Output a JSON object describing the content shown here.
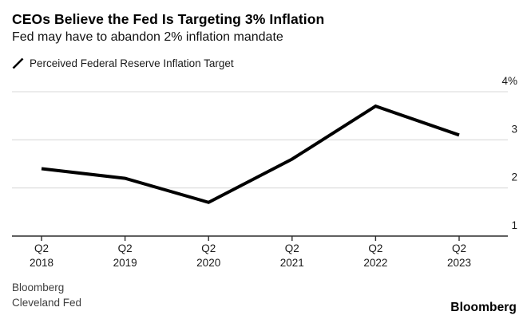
{
  "header": {
    "title": "CEOs Believe the Fed Is Targeting 3% Inflation",
    "subtitle": "Fed may have to abandon 2% inflation mandate"
  },
  "legend": {
    "label": "Perceived Federal Reserve Inflation Target",
    "marker": "slash-line",
    "color": "#000000"
  },
  "chart_data": {
    "type": "line",
    "title": "CEOs Believe the Fed Is Targeting 3% Inflation",
    "subtitle": "Fed may have to abandon 2% inflation mandate",
    "series": [
      {
        "name": "Perceived Federal Reserve Inflation Target",
        "values": [
          2.4,
          2.2,
          1.7,
          2.6,
          3.7,
          3.1
        ],
        "color": "#000000"
      }
    ],
    "categories": [
      {
        "quarter": "Q2",
        "year": "2018"
      },
      {
        "quarter": "Q2",
        "year": "2019"
      },
      {
        "quarter": "Q2",
        "year": "2020"
      },
      {
        "quarter": "Q2",
        "year": "2021"
      },
      {
        "quarter": "Q2",
        "year": "2022"
      },
      {
        "quarter": "Q2",
        "year": "2023"
      }
    ],
    "xlabel": "",
    "ylabel": "",
    "ylim": [
      1,
      4
    ],
    "y_ticks": [
      1,
      2,
      3,
      4
    ],
    "y_tick_labels": [
      "1",
      "2",
      "3",
      "4%"
    ],
    "y_axis_side": "right",
    "grid": "horizontal",
    "grid_color": "#dadada",
    "axis_color": "#2b2b2b",
    "legend_position": "top-left"
  },
  "footer": {
    "source_line1": "Bloomberg",
    "source_line2": "Cleveland Fed",
    "brand": "Bloomberg"
  }
}
